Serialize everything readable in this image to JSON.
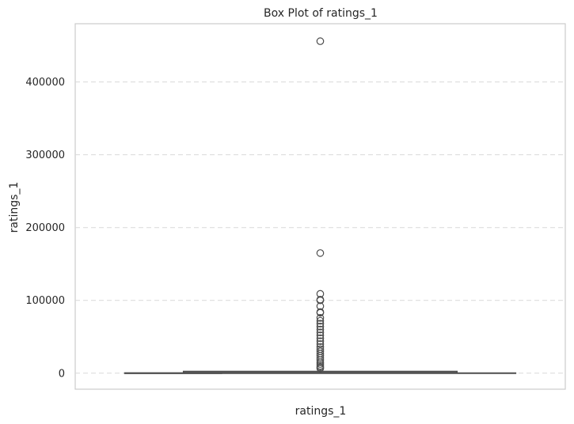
{
  "chart_data": {
    "type": "box",
    "title": "Box Plot of ratings_1",
    "xlabel": "ratings_1",
    "ylabel": "ratings_1",
    "ylim": [
      -22000,
      480000
    ],
    "yticks": [
      0,
      100000,
      200000,
      300000,
      400000
    ],
    "ytick_labels": [
      "0",
      "100000",
      "200000",
      "300000",
      "400000"
    ],
    "grid": "y-dashed",
    "series": [
      {
        "whisker_low": 0,
        "q1": 400,
        "median": 1000,
        "q3": 2500,
        "whisker_high": 5500,
        "outliers": [
          456000,
          165000,
          109000,
          101000,
          100000,
          92000,
          84000,
          83000,
          76000,
          72000,
          68000,
          64000,
          60000,
          56000,
          52000,
          48000,
          44000,
          40000,
          36000,
          33000,
          30000,
          27000,
          24000,
          21000,
          18000,
          15000,
          12500,
          10000,
          8000,
          6500
        ]
      }
    ],
    "colors": {
      "box_edge": "#4d4d4d",
      "grid": "#d9d9d9",
      "frame": "#cccccc"
    }
  }
}
